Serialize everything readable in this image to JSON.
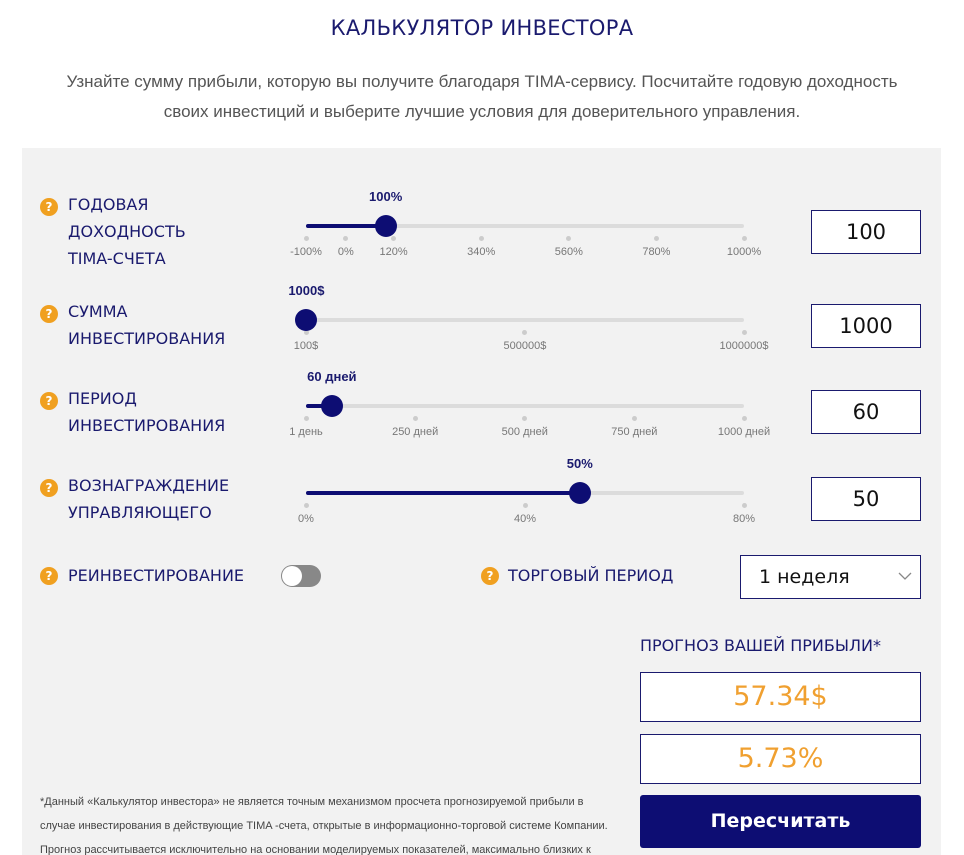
{
  "header": {
    "title": "КАЛЬКУЛЯТОР ИНВЕСТОРА",
    "subtitle": [
      "Узнайте сумму прибыли, которую вы получите благодаря TIMA-сервису. Посчитайте годовую доходность",
      "своих инвестиций и выберите лучшие условия для доверительного управления."
    ]
  },
  "sliders": [
    {
      "label": "ГОДОВАЯ ДОХОДНОСТЬ TIMA-СЧЕТА",
      "value": 100,
      "value_label": "100%",
      "ticks": [
        {
          "value": -100,
          "label": "-100%"
        },
        {
          "value": 0,
          "label": "0%"
        },
        {
          "value": 120,
          "label": "120%"
        },
        {
          "value": 340,
          "label": "340%"
        },
        {
          "value": 560,
          "label": "560%"
        },
        {
          "value": 780,
          "label": "780%"
        },
        {
          "value": 1000,
          "label": "1000%"
        }
      ]
    },
    {
      "label": "СУММА ИНВЕСТИРОВАНИЯ",
      "value": 1000,
      "value_label": "1000$",
      "ticks": [
        {
          "value": 100,
          "label": "100$"
        },
        {
          "value": 500000,
          "label": "500000$"
        },
        {
          "value": 1000000,
          "label": "1000000$"
        }
      ]
    },
    {
      "label": "ПЕРИОД ИНВЕСТИРОВАНИЯ",
      "value": 60,
      "value_label": "60 дней",
      "ticks": [
        {
          "value": 1,
          "label": "1 день"
        },
        {
          "value": 250,
          "label": "250 дней"
        },
        {
          "value": 500,
          "label": "500 дней"
        },
        {
          "value": 750,
          "label": "750 дней"
        },
        {
          "value": 1000,
          "label": "1000 дней"
        }
      ]
    },
    {
      "label": "ВОЗНАГРАЖДЕНИЕ УПРАВЛЯЮЩЕГО",
      "value": 50,
      "value_label": "50%",
      "ticks": [
        {
          "value": 0,
          "label": "0%"
        },
        {
          "value": 40,
          "label": "40%"
        },
        {
          "value": 80,
          "label": "80%"
        }
      ]
    }
  ],
  "reinvest": {
    "label": "РЕИНВЕСТИРОВАНИЕ"
  },
  "trading_period": {
    "label": "ТОРГОВЫЙ ПЕРИОД",
    "selected": "1 неделя"
  },
  "result": {
    "title": "ПРОГНОЗ ВАШЕЙ ПРИБЫЛИ*",
    "profit": "57.34$",
    "percent": "5.73%",
    "button": "Пересчитать"
  },
  "footnote": [
    "*Данный «Калькулятор инвестора» не является точным механизмом просчета прогнозируемой прибыли в",
    "случае инвестирования в действующие TIMA -счета, открытые в информационно-торговой системе Компании.",
    "Прогноз рассчитывается исключительно на основании моделируемых показателей, максимально близких к"
  ]
}
